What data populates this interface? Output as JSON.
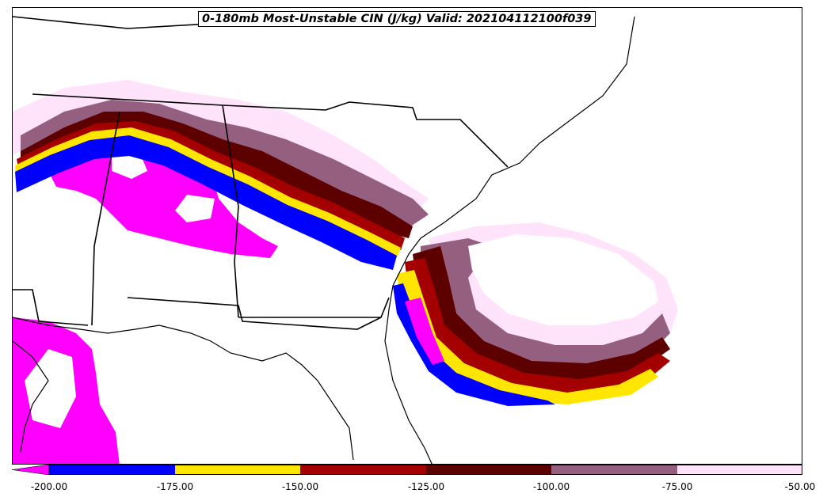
{
  "title": "0-180mb Most-Unstable CIN (J/kg) Valid: 202104112100f039",
  "colorbar": {
    "ticks": [
      "-200.00",
      "-175.00",
      "-150.00",
      "-125.00",
      "-100.00",
      "-75.00",
      "-50.00"
    ],
    "levels": [
      -200,
      -175,
      -150,
      -125,
      -100,
      -75,
      -50
    ],
    "bins": [
      {
        "range": [
          -225,
          -200
        ],
        "color": "#ff00ff"
      },
      {
        "range": [
          -200,
          -175
        ],
        "color": "#0000ff"
      },
      {
        "range": [
          -175,
          -150
        ],
        "color": "#ffe600"
      },
      {
        "range": [
          -150,
          -125
        ],
        "color": "#a50000"
      },
      {
        "range": [
          -125,
          -100
        ],
        "color": "#5c0000"
      },
      {
        "range": [
          -100,
          -75
        ],
        "color": "#956080"
      },
      {
        "range": [
          -75,
          -50
        ],
        "color": "#ffe3fb"
      }
    ],
    "extend": "min"
  },
  "map": {
    "field_colors": {
      "lt_-200": "#ff00ff",
      "-200_-175": "#0000ff",
      "-175_-150": "#ffe600",
      "-150_-125": "#a50000",
      "-125_-100": "#5c0000",
      "-100_-75": "#956080",
      "-75_-50": "#ffe3fb"
    },
    "boundary_color": "#000000"
  }
}
